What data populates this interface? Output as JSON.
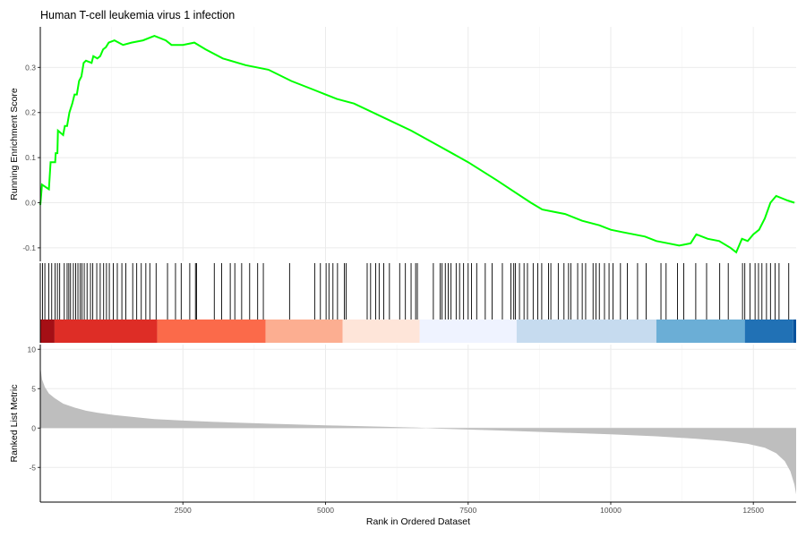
{
  "title": "Human T-cell leukemia virus 1 infection",
  "chart_data": [
    {
      "type": "line",
      "name": "running-enrichment",
      "ylabel": "Running Enrichment Score",
      "xlim": [
        0,
        13250
      ],
      "ylim": [
        -0.13,
        0.39
      ],
      "yticks": [
        -0.1,
        0.0,
        0.1,
        0.2,
        0.3
      ],
      "ytick_labels": [
        "-0.1",
        "0.0",
        "0.1",
        "0.2",
        "0.3"
      ],
      "line_color": "#00ff00",
      "grid": true,
      "points": [
        [
          0,
          -0.005
        ],
        [
          30,
          0.04
        ],
        [
          150,
          0.03
        ],
        [
          180,
          0.09
        ],
        [
          260,
          0.09
        ],
        [
          270,
          0.11
        ],
        [
          300,
          0.11
        ],
        [
          310,
          0.16
        ],
        [
          400,
          0.15
        ],
        [
          430,
          0.17
        ],
        [
          470,
          0.17
        ],
        [
          510,
          0.2
        ],
        [
          560,
          0.22
        ],
        [
          600,
          0.24
        ],
        [
          640,
          0.24
        ],
        [
          680,
          0.27
        ],
        [
          720,
          0.28
        ],
        [
          760,
          0.31
        ],
        [
          800,
          0.315
        ],
        [
          900,
          0.31
        ],
        [
          930,
          0.325
        ],
        [
          1000,
          0.32
        ],
        [
          1050,
          0.325
        ],
        [
          1100,
          0.34
        ],
        [
          1150,
          0.345
        ],
        [
          1200,
          0.355
        ],
        [
          1300,
          0.36
        ],
        [
          1450,
          0.35
        ],
        [
          1600,
          0.355
        ],
        [
          1800,
          0.36
        ],
        [
          2000,
          0.37
        ],
        [
          2200,
          0.36
        ],
        [
          2300,
          0.35
        ],
        [
          2500,
          0.35
        ],
        [
          2700,
          0.355
        ],
        [
          2900,
          0.34
        ],
        [
          3200,
          0.32
        ],
        [
          3600,
          0.305
        ],
        [
          4000,
          0.295
        ],
        [
          4400,
          0.27
        ],
        [
          4800,
          0.25
        ],
        [
          5000,
          0.24
        ],
        [
          5200,
          0.23
        ],
        [
          5500,
          0.22
        ],
        [
          6000,
          0.19
        ],
        [
          6500,
          0.16
        ],
        [
          7000,
          0.125
        ],
        [
          7500,
          0.09
        ],
        [
          8000,
          0.05
        ],
        [
          8300,
          0.025
        ],
        [
          8600,
          0.0
        ],
        [
          8800,
          -0.015
        ],
        [
          9000,
          -0.02
        ],
        [
          9200,
          -0.025
        ],
        [
          9500,
          -0.04
        ],
        [
          9800,
          -0.05
        ],
        [
          10000,
          -0.06
        ],
        [
          10200,
          -0.065
        ],
        [
          10400,
          -0.07
        ],
        [
          10600,
          -0.075
        ],
        [
          10800,
          -0.085
        ],
        [
          11000,
          -0.09
        ],
        [
          11200,
          -0.095
        ],
        [
          11400,
          -0.09
        ],
        [
          11500,
          -0.07
        ],
        [
          11700,
          -0.08
        ],
        [
          11900,
          -0.085
        ],
        [
          12100,
          -0.1
        ],
        [
          12200,
          -0.11
        ],
        [
          12300,
          -0.08
        ],
        [
          12400,
          -0.085
        ],
        [
          12500,
          -0.07
        ],
        [
          12600,
          -0.06
        ],
        [
          12700,
          -0.035
        ],
        [
          12800,
          0.0
        ],
        [
          12900,
          0.015
        ],
        [
          13000,
          0.01
        ],
        [
          13100,
          0.005
        ],
        [
          13220,
          0.0
        ]
      ]
    },
    {
      "type": "rug",
      "name": "gene-hits",
      "line_color": "#000000",
      "positions": [
        0,
        40,
        80,
        150,
        200,
        260,
        300,
        340,
        420,
        470,
        500,
        530,
        580,
        620,
        660,
        700,
        730,
        770,
        820,
        880,
        920,
        990,
        1050,
        1110,
        1160,
        1210,
        1280,
        1350,
        1430,
        1500,
        1620,
        1690,
        1770,
        1850,
        1920,
        2030,
        2230,
        2370,
        2470,
        2620,
        2720,
        2740,
        3050,
        3180,
        3330,
        3410,
        3530,
        3670,
        3810,
        3910,
        4370,
        4810,
        4910,
        5010,
        5060,
        5130,
        5210,
        5330,
        5360,
        5730,
        5790,
        5880,
        5940,
        6020,
        6120,
        6300,
        6400,
        6500,
        6580,
        6610,
        6890,
        7010,
        7040,
        7100,
        7150,
        7200,
        7290,
        7350,
        7420,
        7500,
        7560,
        7650,
        7800,
        7920,
        8100,
        8250,
        8300,
        8330,
        8400,
        8480,
        8540,
        8640,
        8720,
        8790,
        8910,
        8950,
        9080,
        9180,
        9260,
        9300,
        9420,
        9500,
        9560,
        9690,
        9740,
        9800,
        9890,
        9970,
        10040,
        10170,
        10290,
        10470,
        10620,
        10880,
        10970,
        11170,
        11280,
        11490,
        11680,
        11910,
        12060,
        12310,
        12350,
        12440,
        12530,
        12590,
        12650,
        12730,
        12800,
        12880,
        12950,
        13120
      ]
    },
    {
      "type": "heatmap",
      "name": "rank-color-bar",
      "segments": [
        {
          "from": 0,
          "to": 250,
          "color": "#a50f15"
        },
        {
          "from": 250,
          "to": 2050,
          "color": "#de2d26"
        },
        {
          "from": 2050,
          "to": 3950,
          "color": "#fb6a4a"
        },
        {
          "from": 3950,
          "to": 5300,
          "color": "#fcae91"
        },
        {
          "from": 5300,
          "to": 6650,
          "color": "#fee5d9"
        },
        {
          "from": 6650,
          "to": 8350,
          "color": "#eff3ff"
        },
        {
          "from": 8350,
          "to": 10800,
          "color": "#c6dbef"
        },
        {
          "from": 10800,
          "to": 12350,
          "color": "#6baed6"
        },
        {
          "from": 12350,
          "to": 13200,
          "color": "#2171b5"
        },
        {
          "from": 13200,
          "to": 13250,
          "color": "#08519c"
        }
      ]
    },
    {
      "type": "area",
      "name": "ranked-list-metric",
      "xlabel": "Rank in Ordered Dataset",
      "ylabel": "Ranked List Metric",
      "xlim": [
        0,
        13250
      ],
      "ylim": [
        -9.4,
        10.6
      ],
      "xticks": [
        2500,
        5000,
        7500,
        10000,
        12500
      ],
      "xtick_labels": [
        "2500",
        "5000",
        "7500",
        "10000",
        "12500"
      ],
      "yticks": [
        -5,
        0,
        5,
        10
      ],
      "ytick_labels": [
        "-5",
        "0",
        "5",
        "10"
      ],
      "fill_color": "#bebebe",
      "grid": true,
      "points": [
        [
          0,
          7.8
        ],
        [
          30,
          6.2
        ],
        [
          80,
          5.2
        ],
        [
          150,
          4.4
        ],
        [
          250,
          3.8
        ],
        [
          400,
          3.1
        ],
        [
          600,
          2.6
        ],
        [
          800,
          2.2
        ],
        [
          1000,
          1.95
        ],
        [
          1300,
          1.65
        ],
        [
          1700,
          1.35
        ],
        [
          2000,
          1.15
        ],
        [
          2500,
          0.95
        ],
        [
          3000,
          0.8
        ],
        [
          4000,
          0.55
        ],
        [
          5000,
          0.35
        ],
        [
          6000,
          0.18
        ],
        [
          6600,
          0.05
        ],
        [
          7000,
          -0.08
        ],
        [
          8000,
          -0.3
        ],
        [
          9000,
          -0.55
        ],
        [
          10000,
          -0.8
        ],
        [
          10800,
          -1.05
        ],
        [
          11500,
          -1.35
        ],
        [
          12000,
          -1.65
        ],
        [
          12400,
          -2.0
        ],
        [
          12700,
          -2.5
        ],
        [
          12900,
          -3.2
        ],
        [
          13050,
          -4.2
        ],
        [
          13150,
          -5.5
        ],
        [
          13220,
          -7.2
        ],
        [
          13250,
          -8.4
        ]
      ]
    }
  ]
}
